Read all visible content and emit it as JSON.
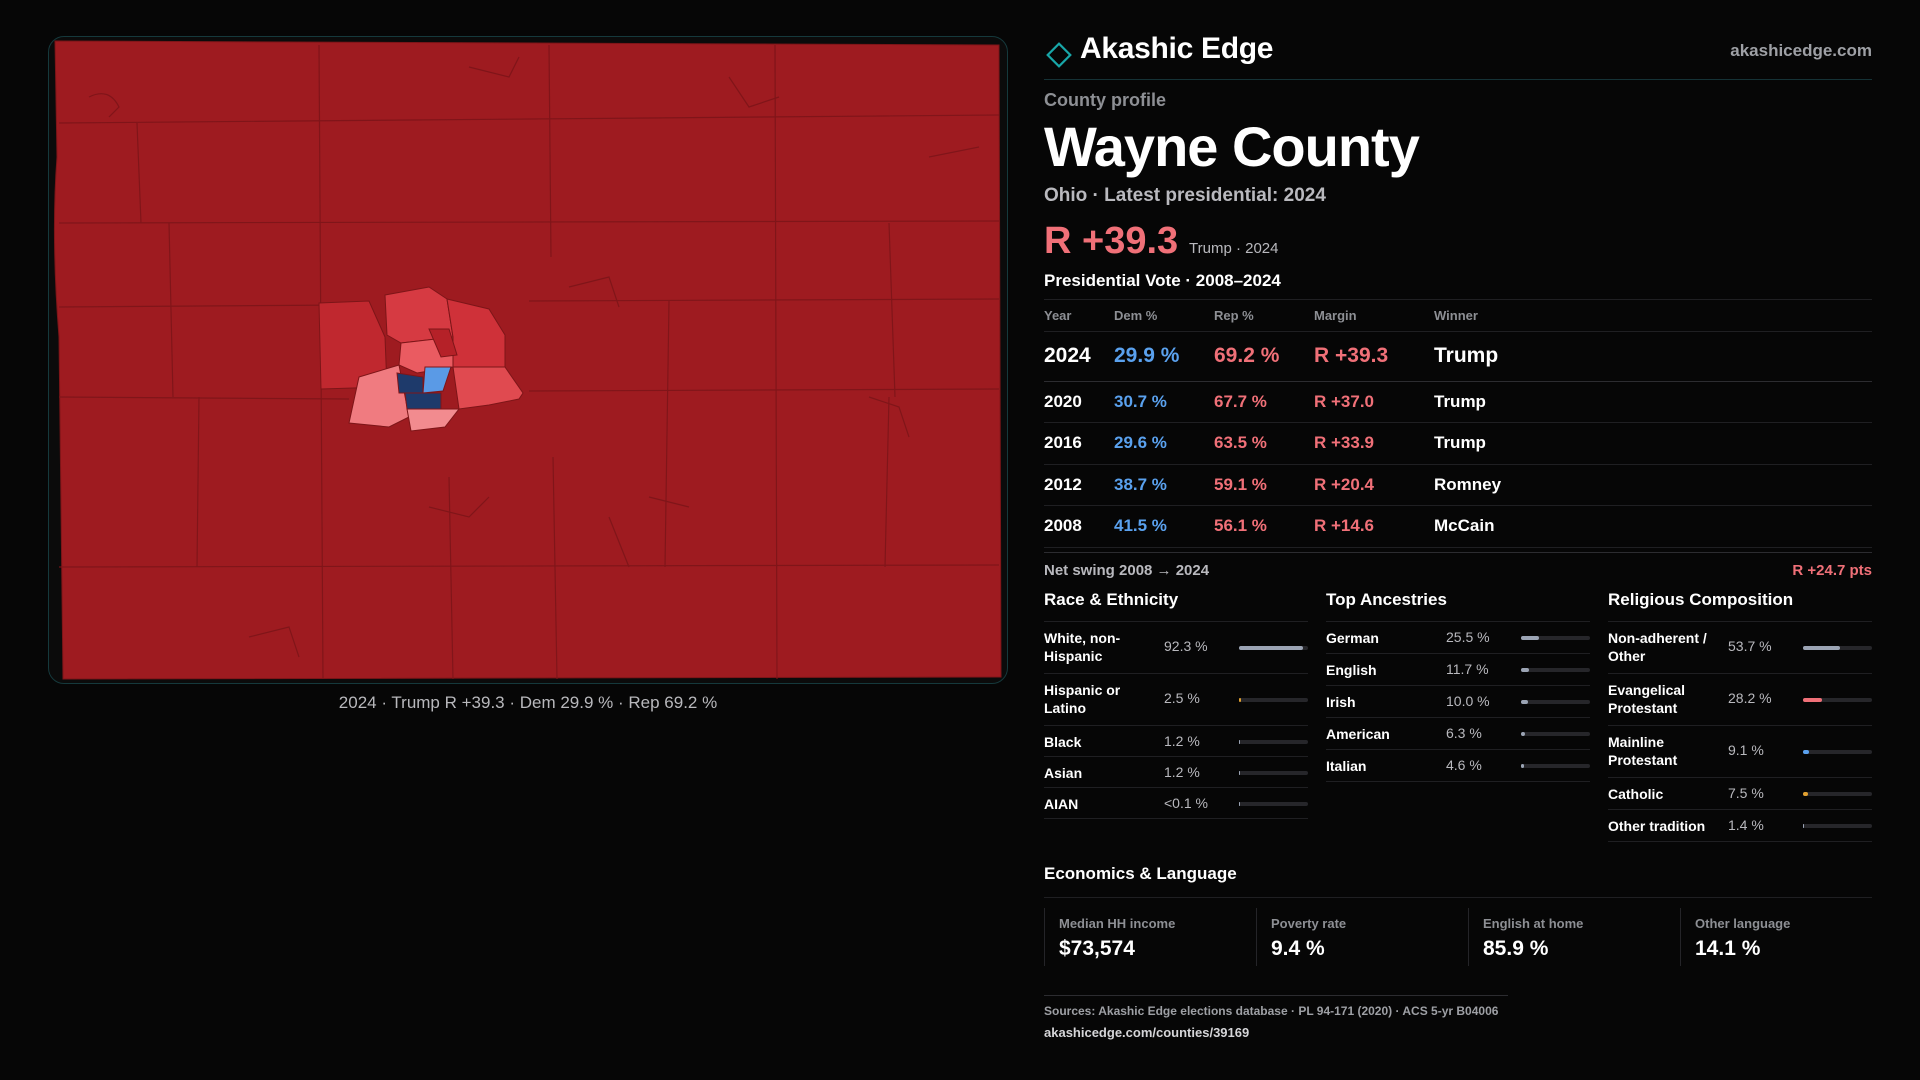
{
  "brand": {
    "name": "Akashic Edge",
    "url": "akashicedge.com",
    "accent": "#18a6a8"
  },
  "profile": {
    "eyebrow": "County profile",
    "county": "Wayne County",
    "subtitle": "Ohio · Latest presidential: 2024",
    "headline_margin": "R +39.3",
    "headline_note": "Trump · 2024"
  },
  "map": {
    "caption": "2024 · Trump R +39.3 · Dem 29.9 % · Rep 69.2 %",
    "base_color": "#9e1b20"
  },
  "presidential": {
    "title": "Presidential Vote · 2008–2024",
    "columns": [
      "Year",
      "Dem %",
      "Rep %",
      "Margin",
      "Winner"
    ],
    "rows": [
      {
        "year": "2024",
        "dem": "29.9 %",
        "rep": "69.2 %",
        "margin": "R +39.3",
        "winner": "Trump"
      },
      {
        "year": "2020",
        "dem": "30.7 %",
        "rep": "67.7 %",
        "margin": "R +37.0",
        "winner": "Trump"
      },
      {
        "year": "2016",
        "dem": "29.6 %",
        "rep": "63.5 %",
        "margin": "R +33.9",
        "winner": "Trump"
      },
      {
        "year": "2012",
        "dem": "38.7 %",
        "rep": "59.1 %",
        "margin": "R +20.4",
        "winner": "Romney"
      },
      {
        "year": "2008",
        "dem": "41.5 %",
        "rep": "56.1 %",
        "margin": "R +14.6",
        "winner": "McCain"
      }
    ],
    "swing_label": "Net swing 2008 → 2024",
    "swing_value": "R +24.7 pts"
  },
  "race": {
    "title": "Race & Ethnicity",
    "items": [
      {
        "label": "White, non-Hispanic",
        "value": "92.3 %",
        "share": 92.3,
        "color": "#9ba4b4"
      },
      {
        "label": "Hispanic or Latino",
        "value": "2.5 %",
        "share": 2.5,
        "color": "#e0a030"
      },
      {
        "label": "Black",
        "value": "1.2 %",
        "share": 1.2,
        "color": "#9ba4b4"
      },
      {
        "label": "Asian",
        "value": "1.2 %",
        "share": 1.2,
        "color": "#9ba4b4"
      },
      {
        "label": "AIAN",
        "value": "<0.1 %",
        "share": 0.1,
        "color": "#9ba4b4"
      }
    ]
  },
  "ancestry": {
    "title": "Top Ancestries",
    "items": [
      {
        "label": "German",
        "value": "25.5 %",
        "share": 25.5,
        "color": "#9ba4b4"
      },
      {
        "label": "English",
        "value": "11.7 %",
        "share": 11.7,
        "color": "#9ba4b4"
      },
      {
        "label": "Irish",
        "value": "10.0 %",
        "share": 10.0,
        "color": "#9ba4b4"
      },
      {
        "label": "American",
        "value": "6.3 %",
        "share": 6.3,
        "color": "#9ba4b4"
      },
      {
        "label": "Italian",
        "value": "4.6 %",
        "share": 4.6,
        "color": "#9ba4b4"
      }
    ]
  },
  "religion": {
    "title": "Religious Composition",
    "items": [
      {
        "label": "Non-adherent / Other",
        "value": "53.7 %",
        "share": 53.7,
        "color": "#9ba4b4"
      },
      {
        "label": "Evangelical Protestant",
        "value": "28.2 %",
        "share": 28.2,
        "color": "#f07078"
      },
      {
        "label": "Mainline Protestant",
        "value": "9.1 %",
        "share": 9.1,
        "color": "#5aa1ee"
      },
      {
        "label": "Catholic",
        "value": "7.5 %",
        "share": 7.5,
        "color": "#e0a030"
      },
      {
        "label": "Other tradition",
        "value": "1.4 %",
        "share": 1.4,
        "color": "#9ba4b4"
      }
    ]
  },
  "economics": {
    "title": "Economics & Language",
    "items": [
      {
        "label": "Median HH income",
        "value": "$73,574"
      },
      {
        "label": "Poverty rate",
        "value": "9.4 %"
      },
      {
        "label": "English at home",
        "value": "85.9 %"
      },
      {
        "label": "Other language",
        "value": "14.1 %"
      }
    ]
  },
  "sources": {
    "line": "Sources: Akashic Edge elections database · PL 94-171 (2020) · ACS 5-yr B04006",
    "link": "akashicedge.com/counties/39169"
  }
}
